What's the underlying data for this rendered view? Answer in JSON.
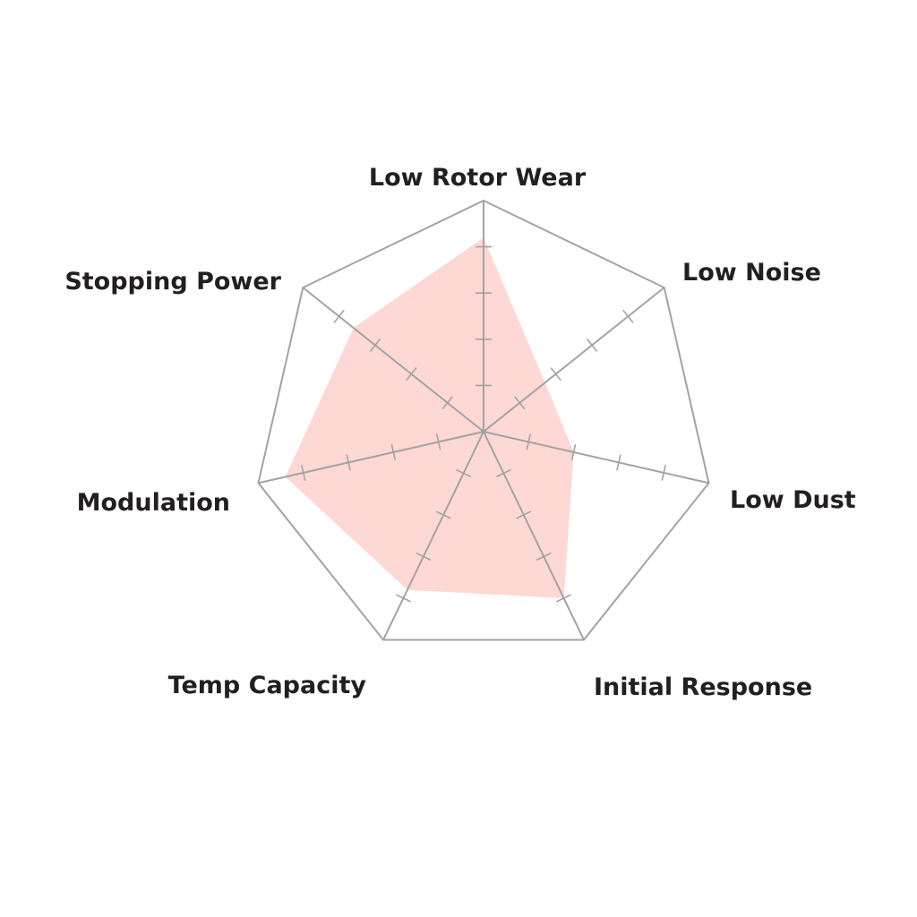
{
  "chart_data": {
    "type": "radar",
    "axes": [
      "Low Rotor Wear",
      "Low Noise",
      "Low Dust",
      "Initial Response",
      "Temp Capacity",
      "Modulation",
      "Stopping Power"
    ],
    "values": [
      4.2,
      1.7,
      2.0,
      4.0,
      3.8,
      4.4,
      3.6
    ],
    "range": [
      0,
      5
    ],
    "ticks": [
      1,
      2,
      3,
      4
    ],
    "grid": true,
    "colors": {
      "fill": "#fdd8d4",
      "grid": "#a3a3a3",
      "text": "#231f20"
    }
  }
}
